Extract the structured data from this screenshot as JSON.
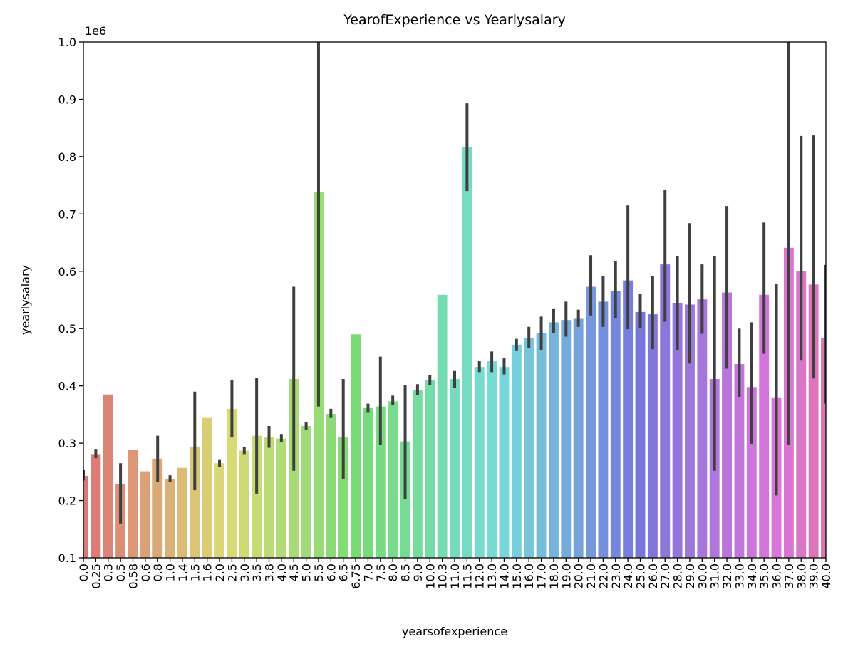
{
  "chart_data": {
    "type": "bar",
    "title": "YearofExperience vs Yearlysalary",
    "xlabel": "yearsofexperience",
    "ylabel": "yearlysalary",
    "y_offset_label": "1e6",
    "palette": "husl",
    "categories": [
      "0.0",
      "0.25",
      "0.3",
      "0.5",
      "0.58",
      "0.6",
      "0.8",
      "1.0",
      "1.4",
      "1.5",
      "1.6",
      "2.0",
      "2.5",
      "3.0",
      "3.5",
      "3.8",
      "4.0",
      "4.5",
      "5.0",
      "5.5",
      "6.0",
      "6.5",
      "6.75",
      "7.0",
      "7.5",
      "8.0",
      "8.5",
      "9.0",
      "10.0",
      "10.3",
      "11.0",
      "11.5",
      "12.0",
      "13.0",
      "14.0",
      "15.0",
      "16.0",
      "17.0",
      "18.0",
      "19.0",
      "20.0",
      "21.0",
      "22.0",
      "23.0",
      "24.0",
      "25.0",
      "26.0",
      "27.0",
      "28.0",
      "29.0",
      "30.0",
      "31.0",
      "32.0",
      "33.0",
      "34.0",
      "35.0",
      "36.0",
      "37.0",
      "38.0",
      "39.0",
      "40.0"
    ],
    "values": [
      243000,
      281000,
      385000,
      228000,
      288000,
      251000,
      273000,
      237000,
      257000,
      294000,
      344000,
      265000,
      360000,
      287000,
      313000,
      310000,
      308000,
      412000,
      330000,
      738000,
      351000,
      310000,
      490000,
      361000,
      364000,
      373000,
      303000,
      393000,
      410000,
      559000,
      412000,
      817000,
      433000,
      443000,
      433000,
      472000,
      484000,
      492000,
      511000,
      515000,
      517000,
      573000,
      547000,
      565000,
      584000,
      529000,
      525000,
      612000,
      545000,
      542000,
      551000,
      412000,
      563000,
      438000,
      398000,
      559000,
      380000,
      641000,
      600000,
      577000,
      484000
    ],
    "ci_low": [
      235000,
      274000,
      null,
      160000,
      null,
      null,
      233000,
      233000,
      null,
      218000,
      null,
      258000,
      310000,
      281000,
      212000,
      292000,
      302000,
      252000,
      323000,
      364000,
      344000,
      237000,
      null,
      353000,
      297000,
      366000,
      203000,
      384000,
      401000,
      null,
      397000,
      740000,
      424000,
      424000,
      420000,
      462000,
      466000,
      463000,
      492000,
      486000,
      503000,
      523000,
      503000,
      519000,
      499000,
      501000,
      464000,
      512000,
      463000,
      439000,
      491000,
      252000,
      430000,
      381000,
      299000,
      456000,
      209000,
      297000,
      444000,
      413000,
      369000
    ],
    "ci_high": [
      253000,
      290000,
      null,
      265000,
      null,
      null,
      313000,
      244000,
      null,
      390000,
      null,
      272000,
      410000,
      294000,
      414000,
      330000,
      316000,
      573000,
      337000,
      1000000,
      360000,
      412000,
      null,
      369000,
      451000,
      383000,
      402000,
      403000,
      419000,
      null,
      426000,
      893000,
      443000,
      460000,
      448000,
      482000,
      503000,
      521000,
      534000,
      547000,
      533000,
      628000,
      591000,
      618000,
      715000,
      560000,
      592000,
      742000,
      627000,
      684000,
      612000,
      626000,
      714000,
      500000,
      511000,
      685000,
      578000,
      1000000,
      836000,
      837000,
      611000
    ],
    "ylim": [
      100000,
      1000000
    ],
    "yticks": [
      {
        "value": 100000,
        "label": "0.1"
      },
      {
        "value": 200000,
        "label": "0.2"
      },
      {
        "value": 300000,
        "label": "0.3"
      },
      {
        "value": 400000,
        "label": "0.4"
      },
      {
        "value": 500000,
        "label": "0.5"
      },
      {
        "value": 600000,
        "label": "0.6"
      },
      {
        "value": 700000,
        "label": "0.7"
      },
      {
        "value": 800000,
        "label": "0.8"
      },
      {
        "value": 900000,
        "label": "0.9"
      },
      {
        "value": 1000000,
        "label": "1.0"
      }
    ],
    "error_color": "#3f3f3f",
    "grid": false
  }
}
